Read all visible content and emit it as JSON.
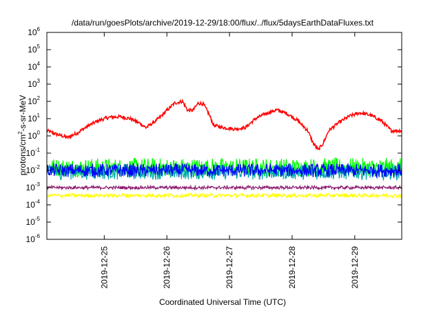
{
  "chart_data": {
    "type": "line",
    "title": "/data/run/goesPlots/archive/2019-12-29/18:00/flux/../flux/5daysEarthDataFluxes.txt",
    "xlabel": "Coordinated Universal Time (UTC)",
    "ylabel": {
      "prefix": "protons/cm",
      "sup": "2",
      "suffix": "-s-sr-MeV"
    },
    "yscale": "log",
    "ylim": [
      1e-06,
      1000000.0
    ],
    "y_ticks": [
      {
        "base": "10",
        "exp": "-6",
        "value": -6
      },
      {
        "base": "10",
        "exp": "-5",
        "value": -5
      },
      {
        "base": "10",
        "exp": "-4",
        "value": -4
      },
      {
        "base": "10",
        "exp": "-3",
        "value": -3
      },
      {
        "base": "10",
        "exp": "-2",
        "value": -2
      },
      {
        "base": "10",
        "exp": "-1",
        "value": -1
      },
      {
        "base": "10",
        "exp": "0",
        "value": 0
      },
      {
        "base": "10",
        "exp": "1",
        "value": 1
      },
      {
        "base": "10",
        "exp": "2",
        "value": 2
      },
      {
        "base": "10",
        "exp": "3",
        "value": 3
      },
      {
        "base": "10",
        "exp": "4",
        "value": 4
      },
      {
        "base": "10",
        "exp": "5",
        "value": 5
      },
      {
        "base": "10",
        "exp": "6",
        "value": 6
      }
    ],
    "xlim": [
      "2019-12-24T02:00",
      "2019-12-29T18:00"
    ],
    "x_ticks": [
      "2019-12-25",
      "2019-12-26",
      "2019-12-27",
      "2019-12-28",
      "2019-12-29"
    ],
    "grid": false,
    "legend": "none",
    "series": [
      {
        "color": "#ff0000",
        "noise": 0.1,
        "points": [
          [
            "2019-12-24T02:00",
            2.0
          ],
          [
            "2019-12-24T06:00",
            1.2
          ],
          [
            "2019-12-24T10:00",
            0.8
          ],
          [
            "2019-12-24T14:00",
            1.6
          ],
          [
            "2019-12-24T18:00",
            4.0
          ],
          [
            "2019-12-24T22:00",
            8.0
          ],
          [
            "2019-12-25T02:00",
            12.0
          ],
          [
            "2019-12-25T06:00",
            13.0
          ],
          [
            "2019-12-25T10:00",
            10.0
          ],
          [
            "2019-12-25T14:00",
            5.0
          ],
          [
            "2019-12-25T16:00",
            3.0
          ],
          [
            "2019-12-25T20:00",
            8.0
          ],
          [
            "2019-12-25T22:00",
            15.0
          ],
          [
            "2019-12-26T00:00",
            30.0
          ],
          [
            "2019-12-26T03:00",
            80.0
          ],
          [
            "2019-12-26T06:00",
            100.0
          ],
          [
            "2019-12-26T08:00",
            30.0
          ],
          [
            "2019-12-26T10:00",
            30.0
          ],
          [
            "2019-12-26T12:00",
            80.0
          ],
          [
            "2019-12-26T14:00",
            70.0
          ],
          [
            "2019-12-26T16:00",
            20.0
          ],
          [
            "2019-12-26T18:00",
            4.0
          ],
          [
            "2019-12-26T22:00",
            3.0
          ],
          [
            "2019-12-27T02:00",
            2.5
          ],
          [
            "2019-12-27T06:00",
            3.0
          ],
          [
            "2019-12-27T10:00",
            10.0
          ],
          [
            "2019-12-27T14:00",
            20.0
          ],
          [
            "2019-12-27T18:00",
            32.0
          ],
          [
            "2019-12-27T22:00",
            20.0
          ],
          [
            "2019-12-28T02:00",
            8.0
          ],
          [
            "2019-12-28T06:00",
            2.0
          ],
          [
            "2019-12-28T08:00",
            0.4
          ],
          [
            "2019-12-28T10:00",
            0.15
          ],
          [
            "2019-12-28T12:00",
            0.4
          ],
          [
            "2019-12-28T14:00",
            2.0
          ],
          [
            "2019-12-28T18:00",
            6.0
          ],
          [
            "2019-12-28T22:00",
            14.0
          ],
          [
            "2019-12-29T02:00",
            22.0
          ],
          [
            "2019-12-29T06:00",
            16.0
          ],
          [
            "2019-12-29T10:00",
            8.0
          ],
          [
            "2019-12-29T14:00",
            2.0
          ],
          [
            "2019-12-29T18:00",
            2.0
          ]
        ]
      },
      {
        "color": "#00ff00",
        "noise": 0.55,
        "points": [
          [
            "2019-12-24T02:00",
            0.015
          ],
          [
            "2019-12-29T18:00",
            0.015
          ]
        ]
      },
      {
        "color": "#00aaaa",
        "noise": 0.45,
        "points": [
          [
            "2019-12-24T02:00",
            0.008
          ],
          [
            "2019-12-29T18:00",
            0.008
          ]
        ]
      },
      {
        "color": "#0000ff",
        "noise": 0.4,
        "points": [
          [
            "2019-12-24T02:00",
            0.01
          ],
          [
            "2019-12-29T18:00",
            0.01
          ]
        ]
      },
      {
        "color": "#8b1a6e",
        "noise": 0.1,
        "points": [
          [
            "2019-12-24T02:00",
            0.001
          ],
          [
            "2019-12-29T18:00",
            0.001
          ]
        ]
      },
      {
        "color": "#ffff00",
        "noise": 0.12,
        "points": [
          [
            "2019-12-24T02:00",
            0.00035
          ],
          [
            "2019-12-29T18:00",
            0.00035
          ]
        ]
      }
    ]
  }
}
